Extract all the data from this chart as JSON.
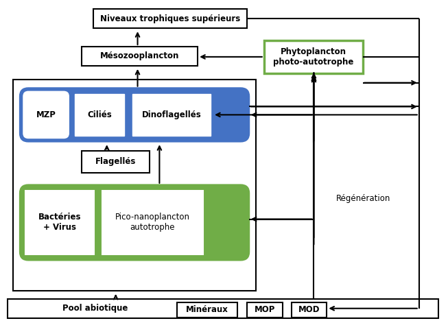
{
  "fig_width": 6.53,
  "fig_height": 4.71,
  "dpi": 100,
  "blue_box_color": "#4472C4",
  "green_box_color": "#70AD47",
  "white": "#ffffff",
  "black": "#000000",
  "texts": {
    "niveaux": "Niveaux trophiques supérieurs",
    "mesozo": "Mésozooplancton",
    "phyto": "Phytoplancton\nphoto-autotrophe",
    "mzp": "MZP",
    "cilies": "Ciliés",
    "dino": "Dinoflagellés",
    "flagelles": "Flagellés",
    "bacteries": "Bactéries\n+ Virus",
    "pico": "Pico-nanoplancton\nautotrophe",
    "pool": "Pool abiotique",
    "mineraux": "Minéraux",
    "mop": "MOP",
    "mod": "MOD",
    "regen": "Régénération"
  }
}
